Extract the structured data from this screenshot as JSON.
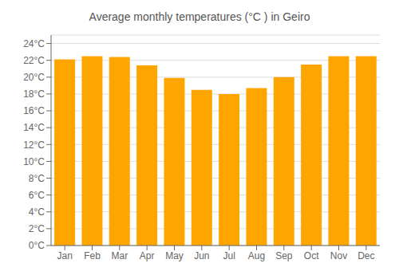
{
  "chart_data": {
    "type": "bar",
    "title": "Average monthly temperatures (°C ) in Geiro",
    "categories": [
      "Jan",
      "Feb",
      "Mar",
      "Apr",
      "May",
      "Jun",
      "Jul",
      "Aug",
      "Sep",
      "Oct",
      "Nov",
      "Dec"
    ],
    "values": [
      22.1,
      22.5,
      22.4,
      21.4,
      19.9,
      18.5,
      18.0,
      18.7,
      20.0,
      21.5,
      22.5,
      22.5
    ],
    "color": "#FFA500",
    "ylim": [
      0,
      25
    ],
    "yticks": [
      {
        "value": 0,
        "label": "0°C"
      },
      {
        "value": 2,
        "label": "2°C"
      },
      {
        "value": 4,
        "label": "4°C"
      },
      {
        "value": 6,
        "label": "6°C"
      },
      {
        "value": 8,
        "label": "8°C"
      },
      {
        "value": 10,
        "label": "10°C"
      },
      {
        "value": 12,
        "label": "12°C"
      },
      {
        "value": 14,
        "label": "14°C"
      },
      {
        "value": 16,
        "label": "16°C"
      },
      {
        "value": 18,
        "label": "18°C"
      },
      {
        "value": 20,
        "label": "20°C"
      },
      {
        "value": 22,
        "label": "22°C"
      },
      {
        "value": 24,
        "label": "24°C"
      }
    ],
    "grid": true
  }
}
